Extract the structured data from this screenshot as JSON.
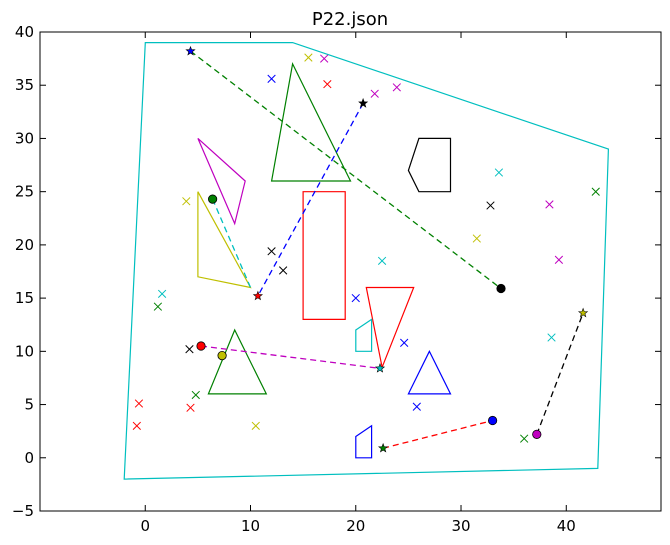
{
  "chart_data": {
    "type": "scatter",
    "title": "P22.json",
    "xlabel": "",
    "ylabel": "",
    "xlim": [
      -10,
      49
    ],
    "ylim": [
      -5,
      40
    ],
    "xticks": [
      0,
      10,
      20,
      30,
      40
    ],
    "yticks": [
      -5,
      0,
      5,
      10,
      15,
      20,
      25,
      30,
      35,
      40
    ],
    "grid": false,
    "colors": {
      "blue": "#0000ff",
      "green": "#008000",
      "red": "#ff0000",
      "cyan": "#00bfbf",
      "magenta": "#bf00bf",
      "yellow": "#bfbf00",
      "black": "#000000"
    },
    "polygons": [
      {
        "color": "cyan",
        "points": [
          [
            0,
            39
          ],
          [
            14,
            39
          ],
          [
            44,
            29
          ],
          [
            43,
            -1
          ],
          [
            -2,
            -2
          ]
        ]
      },
      {
        "color": "green",
        "points": [
          [
            14,
            37
          ],
          [
            12,
            26
          ],
          [
            19.5,
            26
          ]
        ]
      },
      {
        "color": "magenta",
        "points": [
          [
            5,
            30
          ],
          [
            9.5,
            26
          ],
          [
            8.5,
            22
          ]
        ]
      },
      {
        "color": "yellow",
        "points": [
          [
            5,
            25
          ],
          [
            5,
            17
          ],
          [
            10,
            16
          ]
        ]
      },
      {
        "color": "red",
        "points": [
          [
            15,
            25
          ],
          [
            19,
            25
          ],
          [
            19,
            13
          ],
          [
            15,
            13
          ]
        ]
      },
      {
        "color": "black",
        "points": [
          [
            26,
            30
          ],
          [
            29,
            30
          ],
          [
            29,
            25
          ],
          [
            26,
            25
          ],
          [
            25,
            27
          ]
        ]
      },
      {
        "color": "red",
        "points": [
          [
            21,
            16
          ],
          [
            25.5,
            16
          ],
          [
            22.5,
            8.5
          ]
        ]
      },
      {
        "color": "cyan",
        "points": [
          [
            20,
            12
          ],
          [
            21.5,
            13
          ],
          [
            21.5,
            10
          ],
          [
            20,
            10
          ]
        ]
      },
      {
        "color": "green",
        "points": [
          [
            8.5,
            12
          ],
          [
            6,
            6
          ],
          [
            11.5,
            6
          ]
        ]
      },
      {
        "color": "blue",
        "points": [
          [
            27,
            10
          ],
          [
            25,
            6
          ],
          [
            29,
            6
          ]
        ]
      },
      {
        "color": "blue",
        "points": [
          [
            20,
            2
          ],
          [
            21.5,
            3
          ],
          [
            21.5,
            0
          ],
          [
            20,
            0
          ]
        ]
      }
    ],
    "paths": [
      {
        "color": "green",
        "from": [
          4.3,
          38.2
        ],
        "to": [
          33.8,
          15.9
        ],
        "start": "star",
        "end": "circle",
        "start_color": "blue",
        "end_color": "black"
      },
      {
        "color": "blue",
        "from": [
          20.7,
          33.3
        ],
        "to": [
          10.7,
          15.2
        ],
        "start": "star",
        "end": "star",
        "start_color": "black",
        "end_color": "red"
      },
      {
        "color": "cyan",
        "from": [
          6.4,
          24.3
        ],
        "to": [
          10.0,
          16.0
        ],
        "start": "circle",
        "end": "none",
        "start_color": "green",
        "end_color": "cyan"
      },
      {
        "color": "magenta",
        "from": [
          5.3,
          10.5
        ],
        "to": [
          22.3,
          8.4
        ],
        "start": "circle",
        "end": "star",
        "start_color": "red",
        "end_color": "cyan"
      },
      {
        "color": "red",
        "from": [
          22.6,
          0.9
        ],
        "to": [
          33.0,
          3.5
        ],
        "start": "star",
        "end": "circle",
        "start_color": "green",
        "end_color": "blue"
      },
      {
        "color": "black",
        "from": [
          37.2,
          2.2
        ],
        "to": [
          41.6,
          13.6
        ],
        "start": "circle",
        "end": "star",
        "start_color": "magenta",
        "end_color": "yellow"
      }
    ],
    "circles": [
      {
        "x": 7.3,
        "y": 9.6,
        "color": "yellow"
      }
    ],
    "crosses": [
      {
        "x": 12.0,
        "y": 35.6,
        "color": "blue"
      },
      {
        "x": 15.5,
        "y": 37.6,
        "color": "yellow"
      },
      {
        "x": 17.0,
        "y": 37.5,
        "color": "magenta"
      },
      {
        "x": 17.3,
        "y": 35.1,
        "color": "red"
      },
      {
        "x": 21.8,
        "y": 34.2,
        "color": "magenta"
      },
      {
        "x": 23.9,
        "y": 34.8,
        "color": "magenta"
      },
      {
        "x": 33.6,
        "y": 26.8,
        "color": "cyan"
      },
      {
        "x": 32.8,
        "y": 23.7,
        "color": "black"
      },
      {
        "x": 38.4,
        "y": 23.8,
        "color": "magenta"
      },
      {
        "x": 42.8,
        "y": 25.0,
        "color": "green"
      },
      {
        "x": 31.5,
        "y": 20.6,
        "color": "yellow"
      },
      {
        "x": 39.3,
        "y": 18.6,
        "color": "magenta"
      },
      {
        "x": 38.6,
        "y": 11.3,
        "color": "cyan"
      },
      {
        "x": 3.9,
        "y": 24.1,
        "color": "yellow"
      },
      {
        "x": 12.0,
        "y": 19.4,
        "color": "black"
      },
      {
        "x": 13.1,
        "y": 17.6,
        "color": "black"
      },
      {
        "x": 22.5,
        "y": 18.5,
        "color": "cyan"
      },
      {
        "x": 20.0,
        "y": 15.0,
        "color": "blue"
      },
      {
        "x": 1.6,
        "y": 15.4,
        "color": "cyan"
      },
      {
        "x": 1.2,
        "y": 14.2,
        "color": "green"
      },
      {
        "x": 4.2,
        "y": 10.2,
        "color": "black"
      },
      {
        "x": 24.6,
        "y": 10.8,
        "color": "blue"
      },
      {
        "x": 4.8,
        "y": 5.9,
        "color": "green"
      },
      {
        "x": -0.6,
        "y": 5.1,
        "color": "red"
      },
      {
        "x": 4.3,
        "y": 4.7,
        "color": "red"
      },
      {
        "x": -0.8,
        "y": 3.0,
        "color": "red"
      },
      {
        "x": 10.5,
        "y": 3.0,
        "color": "yellow"
      },
      {
        "x": 25.8,
        "y": 4.8,
        "color": "blue"
      },
      {
        "x": 36.0,
        "y": 1.8,
        "color": "green"
      }
    ]
  }
}
